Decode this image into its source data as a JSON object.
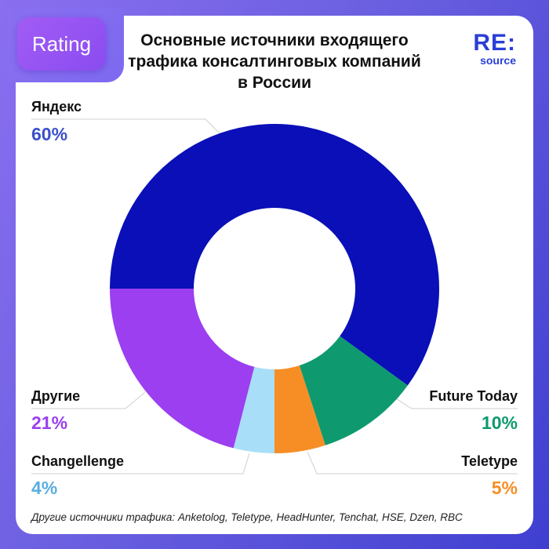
{
  "badge": "Rating",
  "logo": {
    "top": "RE:",
    "bottom": "source"
  },
  "footnote": "Другие источники трафика: Anketolog, Teletype, HeadHunter, Tenchat, HSE, Dzen, RBC",
  "chart_data": {
    "type": "pie",
    "donut": true,
    "title": "Основные источники входящего трафика консалтинговых компаний в России",
    "start": "bottom",
    "direction": "counterclockwise",
    "slices": [
      {
        "label": "Teletype",
        "value": 5,
        "display": "5%",
        "color": "#f78e25"
      },
      {
        "label": "Future Today",
        "value": 10,
        "display": "10%",
        "color": "#0e9a6e"
      },
      {
        "label": "Яндекс",
        "value": 60,
        "display": "60%",
        "color": "#0a0fb8",
        "label_color": "#3a50c8"
      },
      {
        "label": "Другие",
        "value": 21,
        "display": "21%",
        "color": "#9b3ff0"
      },
      {
        "label": "Changellenge",
        "value": 4,
        "display": "4%",
        "color": "#a8def8",
        "label_color": "#5aaee0"
      }
    ]
  }
}
